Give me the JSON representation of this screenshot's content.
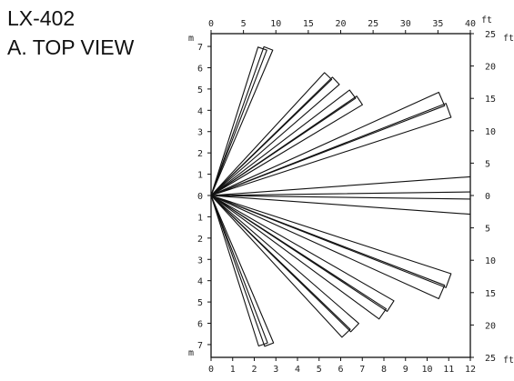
{
  "header": {
    "model": "LX-402",
    "view": "A. TOP VIEW"
  },
  "axes": {
    "top_ft": {
      "unit": "ft",
      "ticks": [
        "0",
        "5",
        "10",
        "15",
        "20",
        "25",
        "30",
        "35",
        "40"
      ]
    },
    "bottom_m": {
      "unit": "m",
      "ticks": [
        "0",
        "1",
        "2",
        "3",
        "4",
        "5",
        "6",
        "7",
        "8",
        "9",
        "10",
        "11",
        "12"
      ]
    },
    "left_m": {
      "unit": "m",
      "ticks_upper": [
        "7",
        "6",
        "5",
        "4",
        "3",
        "2",
        "1",
        "0"
      ],
      "ticks_lower": [
        "1",
        "2",
        "3",
        "4",
        "5",
        "6",
        "7"
      ]
    },
    "right_ft": {
      "unit": "ft",
      "ticks_upper": [
        "25",
        "20",
        "15",
        "10",
        "5",
        "0"
      ],
      "ticks_lower": [
        "5",
        "10",
        "15",
        "20",
        "25"
      ]
    }
  },
  "detection_zones": [
    {
      "angle_deg": 71,
      "range_m": 7.3
    },
    {
      "angle_deg": 69,
      "range_m": 7.4
    },
    {
      "angle_deg": 46,
      "range_m": 7.8
    },
    {
      "angle_deg": 43,
      "range_m": 7.9
    },
    {
      "angle_deg": 36,
      "range_m": 8.1
    },
    {
      "angle_deg": 33,
      "range_m": 8.2
    },
    {
      "angle_deg": 23,
      "range_m": 11.6
    },
    {
      "angle_deg": 20,
      "range_m": 11.7
    },
    {
      "angle_deg": 2.5,
      "range_m": 12.2
    },
    {
      "angle_deg": -2.5,
      "range_m": 12.2
    },
    {
      "angle_deg": -20,
      "range_m": 11.7
    },
    {
      "angle_deg": -23,
      "range_m": 11.6
    },
    {
      "angle_deg": -32,
      "range_m": 9.8
    },
    {
      "angle_deg": -35,
      "range_m": 9.7
    },
    {
      "angle_deg": -43,
      "range_m": 9.1
    },
    {
      "angle_deg": -46,
      "range_m": 9.0
    },
    {
      "angle_deg": -69,
      "range_m": 7.5
    },
    {
      "angle_deg": -71,
      "range_m": 7.4
    }
  ]
}
